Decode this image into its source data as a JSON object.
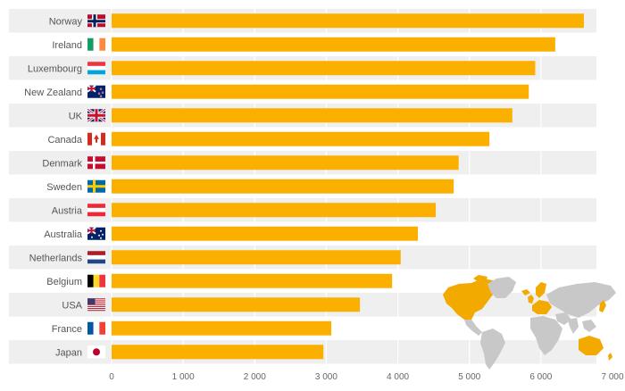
{
  "chart_data": {
    "type": "bar",
    "orientation": "horizontal",
    "title": "",
    "xlabel": "",
    "ylabel": "",
    "categories": [
      "Norway",
      "Ireland",
      "Luxembourg",
      "New Zealand",
      "UK",
      "Canada",
      "Denmark",
      "Sweden",
      "Austria",
      "Australia",
      "Netherlands",
      "Belgium",
      "USA",
      "France",
      "Japan"
    ],
    "values": [
      6600,
      6200,
      5920,
      5830,
      5600,
      5280,
      4850,
      4780,
      4530,
      4280,
      4040,
      3920,
      3470,
      3070,
      2960
    ],
    "xlim": [
      0,
      7000
    ],
    "xticks": [
      0,
      1000,
      2000,
      3000,
      4000,
      5000,
      6000,
      7000
    ],
    "xtick_labels": [
      "0",
      "1 000",
      "2 000",
      "3 000",
      "4 000",
      "5 000",
      "6 000",
      "7 000"
    ],
    "grid": "vertical",
    "legend": "none",
    "colors": {
      "bar": "#FBB000",
      "row_band": "#EFEFEF",
      "grid": "#FFFFFF",
      "label": "#555555",
      "tick": "#666666",
      "map_land": "#C8C8C8",
      "map_highlight": "#F2A900"
    },
    "flag_icons": [
      "norway-flag-icon",
      "ireland-flag-icon",
      "luxembourg-flag-icon",
      "new-zealand-flag-icon",
      "uk-flag-icon",
      "canada-flag-icon",
      "denmark-flag-icon",
      "sweden-flag-icon",
      "austria-flag-icon",
      "australia-flag-icon",
      "netherlands-flag-icon",
      "belgium-flag-icon",
      "usa-flag-icon",
      "france-flag-icon",
      "japan-flag-icon"
    ],
    "decoration": "world-map-icon"
  }
}
